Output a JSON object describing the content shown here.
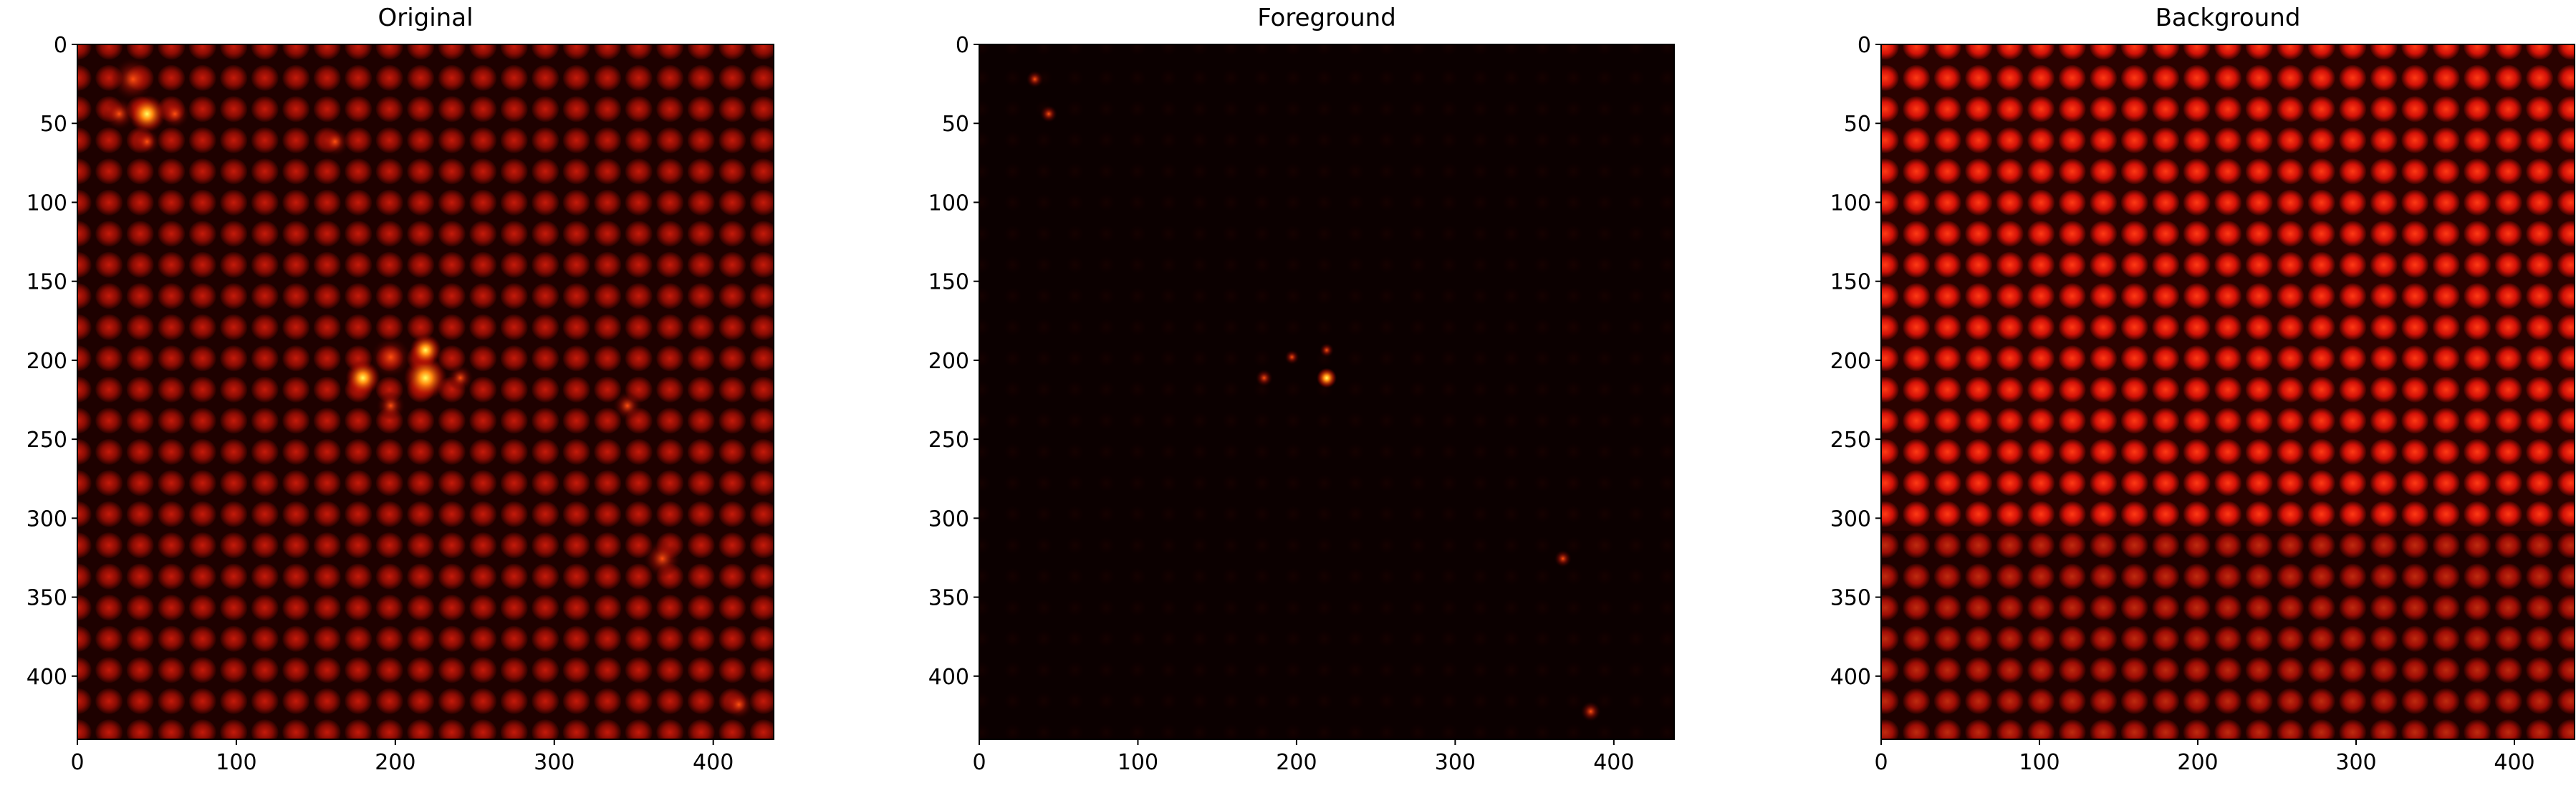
{
  "chart_data": [
    {
      "type": "image",
      "title": "Original",
      "xlim": [
        0,
        438
      ],
      "ylim": [
        440,
        0
      ],
      "xticks": [
        0,
        100,
        200,
        300,
        400
      ],
      "yticks": [
        0,
        50,
        100,
        150,
        200,
        250,
        300,
        350,
        400
      ]
    },
    {
      "type": "image",
      "title": "Foreground",
      "xlim": [
        0,
        438
      ],
      "ylim": [
        440,
        0
      ],
      "xticks": [
        0,
        100,
        200,
        300,
        400
      ],
      "yticks": [
        0,
        50,
        100,
        150,
        200,
        250,
        300,
        350,
        400
      ]
    },
    {
      "type": "image",
      "title": "Background",
      "xlim": [
        0,
        438
      ],
      "ylim": [
        440,
        0
      ],
      "xticks": [
        0,
        100,
        200,
        300,
        400
      ],
      "yticks": [
        0,
        50,
        100,
        150,
        200,
        250,
        300,
        350,
        400
      ]
    }
  ]
}
